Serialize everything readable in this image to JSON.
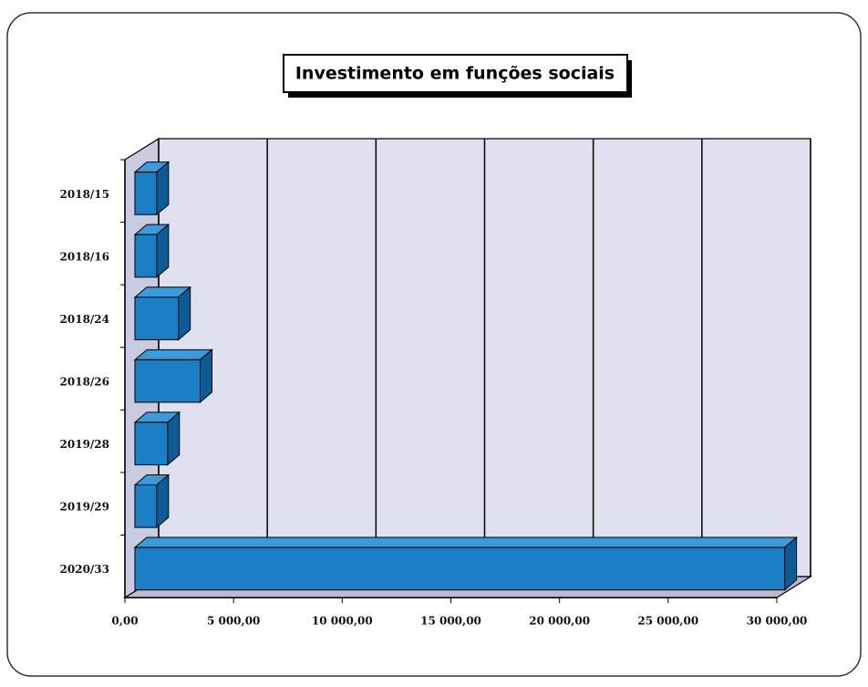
{
  "chart_data": {
    "type": "bar",
    "orientation": "horizontal",
    "title": "Investimento em funções sociais",
    "categories": [
      "2018/15",
      "2018/16",
      "2018/24",
      "2018/26",
      "2019/28",
      "2019/29",
      "2020/33"
    ],
    "values": [
      1000,
      1000,
      2000,
      3000,
      1500,
      1000,
      29900
    ],
    "color": "#1a7fc4",
    "xlim": [
      0,
      30000
    ],
    "xticks": [
      {
        "value": 0,
        "label": "0,00"
      },
      {
        "value": 5000,
        "label": "5 000,00"
      },
      {
        "value": 10000,
        "label": "10 000,00"
      },
      {
        "value": 15000,
        "label": "15 000,00"
      },
      {
        "value": 20000,
        "label": "20 000,00"
      },
      {
        "value": 25000,
        "label": "25 000,00"
      },
      {
        "value": 30000,
        "label": "30 000,00"
      }
    ],
    "grid": true
  }
}
